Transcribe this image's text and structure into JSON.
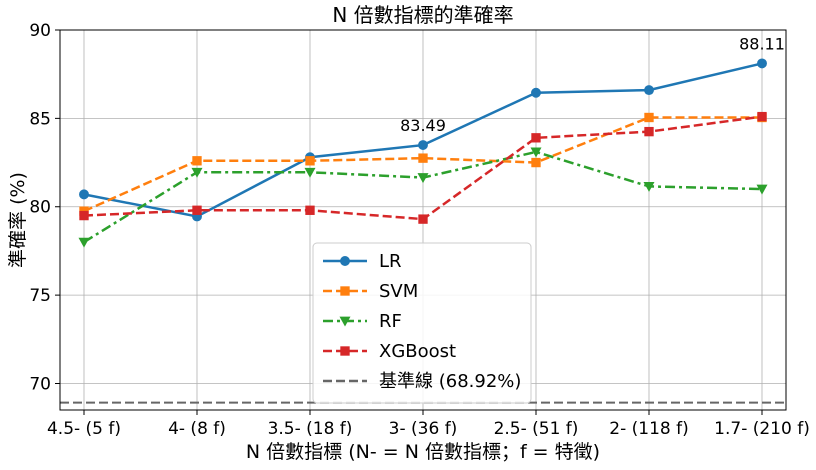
{
  "chart_data": {
    "type": "line",
    "title": "N 倍數指標的準確率",
    "xlabel": "N 倍數指標 (N- = N 倍數指標；f = 特徵)",
    "ylabel": "準確率 (%)",
    "categories": [
      "4.5- (5 f)",
      "4- (8 f)",
      "3.5- (18 f)",
      "3- (36 f)",
      "2.5- (51 f)",
      "2- (118 f)",
      "1.7- (210 f)"
    ],
    "ylim": [
      68.5,
      90
    ],
    "yticks": [
      70,
      75,
      80,
      85,
      90
    ],
    "grid": true,
    "legend_position": "bottom-center",
    "series": [
      {
        "name": "LR",
        "values": [
          80.7,
          79.45,
          82.8,
          83.49,
          86.45,
          86.6,
          88.11
        ],
        "color": "#1f77b4",
        "marker": "circle",
        "dash": "solid"
      },
      {
        "name": "SVM",
        "values": [
          79.75,
          82.6,
          82.6,
          82.75,
          82.5,
          85.05,
          85.05
        ],
        "color": "#ff7f0e",
        "marker": "square",
        "dash": "dashed"
      },
      {
        "name": "RF",
        "values": [
          78.0,
          81.95,
          81.95,
          81.65,
          83.1,
          81.15,
          81.0
        ],
        "color": "#2ca02c",
        "marker": "triangle-down",
        "dash": "dashdot"
      },
      {
        "name": "XGBoost",
        "values": [
          79.5,
          79.8,
          79.8,
          79.3,
          83.9,
          84.25,
          85.1
        ],
        "color": "#d62728",
        "marker": "square",
        "dash": "dashed"
      }
    ],
    "baseline": {
      "name": "基準線 (68.92%)",
      "value": 68.92,
      "color": "#666666"
    },
    "annotations": [
      {
        "text": "83.49",
        "category_index": 3,
        "value": 83.49
      },
      {
        "text": "88.11",
        "category_index": 6,
        "value": 88.11
      }
    ]
  }
}
